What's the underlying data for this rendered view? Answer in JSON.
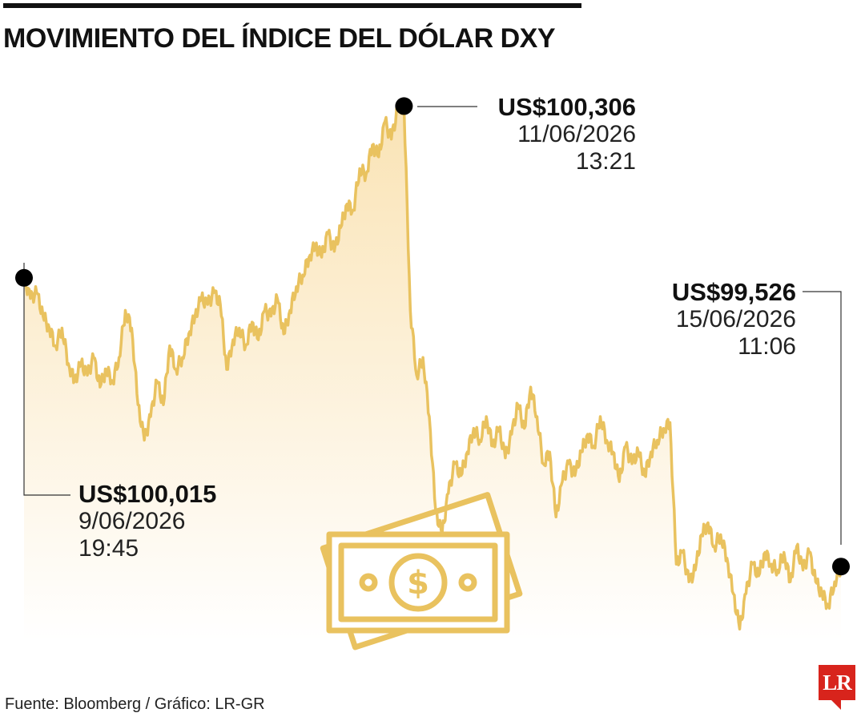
{
  "title": "MOVIMIENTO DEL ÍNDICE DEL DÓLAR DXY",
  "source": "Fuente: Bloomberg / Gráfico: LR-GR",
  "logo_text": "LR",
  "colors": {
    "line": "#e9c25f",
    "fill_top": "#fae3b4",
    "fill_bottom": "#ffffff",
    "marker": "#000000",
    "logo": "#d8241c",
    "icon": "#e9c25f"
  },
  "icons": [
    "money-bills-icon"
  ],
  "annotations": {
    "start": {
      "value": "US$100,015",
      "date": "9/06/2026",
      "time": "19:45"
    },
    "high": {
      "value": "US$100,306",
      "date": "11/06/2026",
      "time": "13:21"
    },
    "end": {
      "value": "US$99,526",
      "date": "15/06/2026",
      "time": "11:06"
    }
  },
  "chart_data": {
    "type": "area",
    "title": "MOVIMIENTO DEL ÍNDICE DEL DÓLAR DXY",
    "xlabel": "",
    "ylabel": "",
    "xlim": [
      "9/06/2026 19:45",
      "15/06/2026 11:06"
    ],
    "ylim": [
      99.4,
      100.35
    ],
    "grid": false,
    "legend": "none",
    "series": [
      {
        "values": [
          100.015,
          99.98,
          99.99,
          99.95,
          99.93,
          99.9,
          99.93,
          99.87,
          99.84,
          99.87,
          99.85,
          99.88,
          99.83,
          99.86,
          99.84,
          99.88,
          99.96,
          99.93,
          99.8,
          99.74,
          99.78,
          99.84,
          99.8,
          99.9,
          99.86,
          99.88,
          99.92,
          99.95,
          99.98,
          99.97,
          99.99,
          99.97,
          99.86,
          99.91,
          99.93,
          99.9,
          99.94,
          99.91,
          99.96,
          99.95,
          99.98,
          99.92,
          99.96,
          100.0,
          100.02,
          100.05,
          100.07,
          100.05,
          100.09,
          100.06,
          100.1,
          100.14,
          100.13,
          100.2,
          100.19,
          100.24,
          100.22,
          100.28,
          100.25,
          100.3,
          100.306,
          99.96,
          99.85,
          99.88,
          99.78,
          99.62,
          99.58,
          99.65,
          99.7,
          99.68,
          99.72,
          99.76,
          99.74,
          99.78,
          99.73,
          99.76,
          99.71,
          99.75,
          99.8,
          99.76,
          99.83,
          99.78,
          99.7,
          99.72,
          99.61,
          99.67,
          99.7,
          99.68,
          99.72,
          99.75,
          99.73,
          99.78,
          99.74,
          99.72,
          99.67,
          99.73,
          99.7,
          99.72,
          99.68,
          99.72,
          99.74,
          99.76,
          99.77,
          99.53,
          99.55,
          99.5,
          99.52,
          99.58,
          99.6,
          99.56,
          99.58,
          99.54,
          99.48,
          99.42,
          99.48,
          99.53,
          99.51,
          99.55,
          99.53,
          99.52,
          99.55,
          99.5,
          99.56,
          99.52,
          99.55,
          99.5,
          99.48,
          99.46,
          99.5,
          99.526
        ]
      }
    ]
  }
}
